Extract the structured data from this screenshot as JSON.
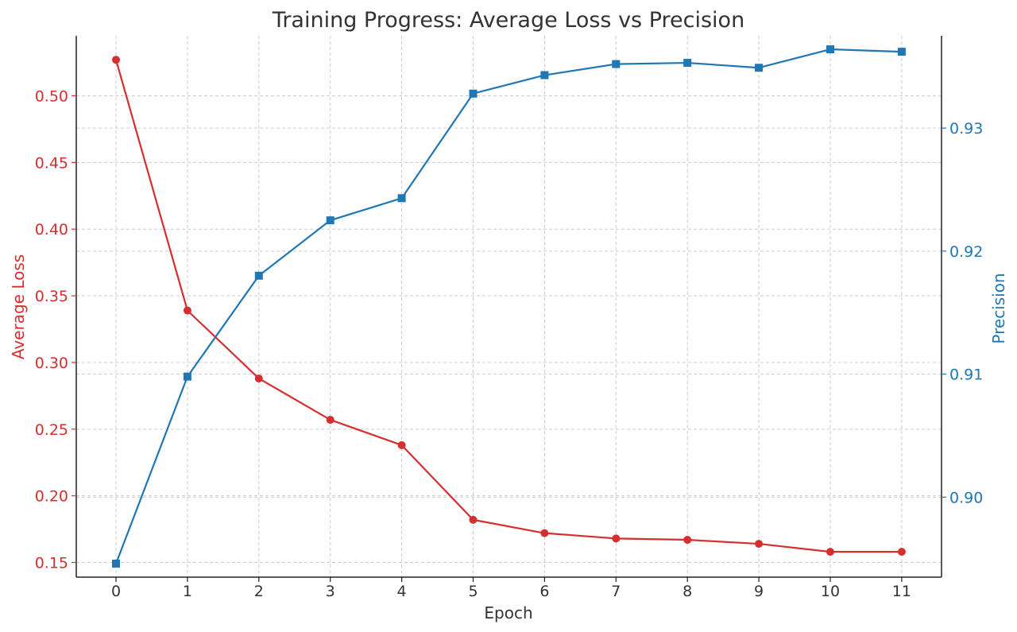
{
  "chart_data": {
    "type": "line",
    "title": "Training Progress: Average Loss vs Precision",
    "xlabel": "Epoch",
    "ylabel_left": "Average Loss",
    "ylabel_right": "Precision",
    "x": [
      0,
      1,
      2,
      3,
      4,
      5,
      6,
      7,
      8,
      9,
      10,
      11
    ],
    "xticks": [
      "0",
      "1",
      "2",
      "3",
      "4",
      "5",
      "6",
      "7",
      "8",
      "9",
      "10",
      "11"
    ],
    "yticks_left": [
      "0.15",
      "0.20",
      "0.25",
      "0.30",
      "0.35",
      "0.40",
      "0.45",
      "0.50"
    ],
    "yticks_right": [
      "0.90",
      "0.91",
      "0.92",
      "0.93"
    ],
    "ylim_left": [
      0.139,
      0.545
    ],
    "ylim_right": [
      0.8935,
      0.9375
    ],
    "grid": true,
    "series": [
      {
        "name": "Average Loss",
        "axis": "left",
        "color": "#d62f2f",
        "marker": "circle",
        "values": [
          0.527,
          0.339,
          0.288,
          0.257,
          0.238,
          0.182,
          0.172,
          0.168,
          0.167,
          0.164,
          0.158,
          0.158
        ]
      },
      {
        "name": "Precision",
        "axis": "right",
        "color": "#1f77b4",
        "marker": "square",
        "values": [
          0.8946,
          0.9098,
          0.918,
          0.9225,
          0.9243,
          0.9328,
          0.9343,
          0.9352,
          0.9353,
          0.9349,
          0.9364,
          0.9362
        ]
      }
    ]
  }
}
